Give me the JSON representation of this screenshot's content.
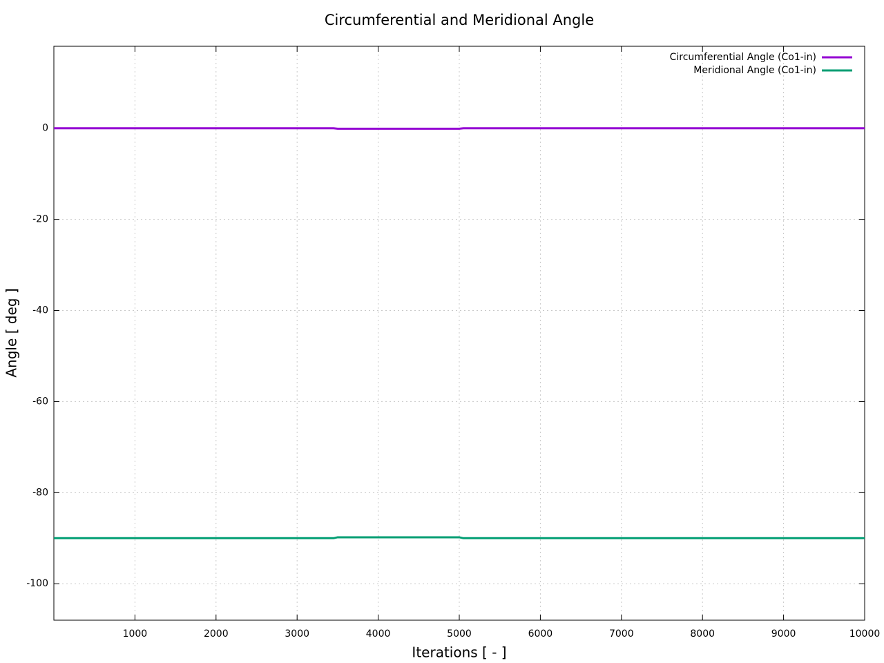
{
  "chart_data": {
    "type": "line",
    "title": "Circumferential and Meridional Angle",
    "x_label": "Iterations [ - ]",
    "y_label": "Angle [ deg ]",
    "x": [
      0,
      3450,
      3500,
      5000,
      5050,
      10000
    ],
    "series": [
      {
        "name": "Circumferential Angle (Co1-in)",
        "color": "#9400d3",
        "values": [
          0,
          0,
          -0.1,
          -0.1,
          0,
          0
        ]
      },
      {
        "name": "Meridional Angle (Co1-in)",
        "color": "#009e73",
        "values": [
          -90,
          -90,
          -89.8,
          -89.8,
          -90,
          -90
        ]
      }
    ],
    "xlim": [
      0,
      10000
    ],
    "xticks": [
      1000,
      2000,
      3000,
      4000,
      5000,
      6000,
      7000,
      8000,
      9000,
      10000
    ],
    "ylim": [
      -108,
      18
    ],
    "yticks": [
      0,
      -20,
      -40,
      -60,
      -80,
      -100
    ],
    "grid": true,
    "legend": "top-right"
  }
}
